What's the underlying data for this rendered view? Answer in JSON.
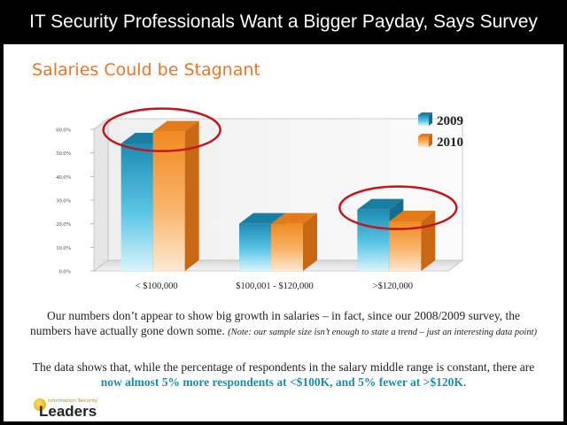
{
  "header": {
    "title": "IT Security Professionals Want a Bigger Payday, Says Survey"
  },
  "slide": {
    "subtitle": "Salaries Could be Stagnant",
    "paragraph1": "Our numbers don’t appear to show big growth in salaries – in fact, since our 2008/2009 survey, the numbers have actually gone down some.",
    "paragraph1_note": "(Note: our sample size isn’t enough to state a trend – just an interesting data point)",
    "paragraph2_start": "The data shows that, while the percentage of respondents in the salary middle range is constant, there are",
    "paragraph2_highlight": "now almost 5% more respondents at <$100K, and 5% fewer at >$120K",
    "paragraph2_end": "."
  },
  "logo": {
    "small_text": "Information Security",
    "big_text": "Leaders"
  },
  "colors": {
    "accent_orange": "#e8762d",
    "highlight_teal": "#1a8ca8",
    "series_2009": "#1f9cc4",
    "series_2010": "#f59a3c",
    "circle": "#c0161c"
  },
  "chart_data": {
    "type": "bar",
    "categories": [
      "< $100,000",
      "$100,001 - $120,000",
      ">$120,000"
    ],
    "series": [
      {
        "name": "2009",
        "values": [
          54,
          20,
          26
        ]
      },
      {
        "name": "2010",
        "values": [
          59,
          20,
          21
        ]
      }
    ],
    "y_ticks": [
      "0.0%",
      "10.0%",
      "20.0%",
      "30.0%",
      "40.0%",
      "50.0%",
      "60.0%"
    ],
    "ylim": [
      0,
      60
    ],
    "legend_position": "top-right",
    "grid": false,
    "style": "3d",
    "highlighted_categories": [
      "< $100,000",
      ">$120,000"
    ]
  }
}
